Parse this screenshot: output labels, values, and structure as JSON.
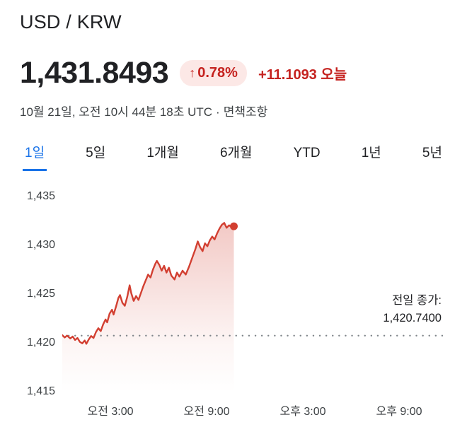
{
  "header": {
    "title": "USD / KRW",
    "price": "1,431.8493",
    "change_arrow": "↑",
    "change_percent": "0.78%",
    "change_value": "+11.1093",
    "change_period": "오늘",
    "datetime": "10월 21일, 오전 10시 44분 18초 UTC",
    "separator": "·",
    "disclaimer": "면책조항"
  },
  "tabs": [
    {
      "label": "1일",
      "active": true
    },
    {
      "label": "5일",
      "active": false
    },
    {
      "label": "1개월",
      "active": false
    },
    {
      "label": "6개월",
      "active": false
    },
    {
      "label": "YTD",
      "active": false
    },
    {
      "label": "1년",
      "active": false
    },
    {
      "label": "5년",
      "active": false
    }
  ],
  "colors": {
    "accent_blue": "#1a73e8",
    "negative_red": "#c5221f",
    "pill_background": "#fce8e6",
    "line_red": "#d23f31",
    "axis_text": "#3c4043",
    "dotted_line": "#80868b"
  },
  "chart_data": {
    "type": "line",
    "title": "USD / KRW 1일 차트",
    "x_unit": "hour",
    "x_range": [
      0,
      24
    ],
    "y_range": [
      1415,
      1435
    ],
    "yticks": [
      1435,
      1430,
      1425,
      1420,
      1415
    ],
    "ytick_labels": [
      "1,435",
      "1,430",
      "1,425",
      "1,420",
      "1,415"
    ],
    "xticks": [
      3,
      9,
      15,
      21
    ],
    "xtick_labels": [
      "오전 3:00",
      "오전 9:00",
      "오후 3:00",
      "오후 9:00"
    ],
    "grid": false,
    "legend": false,
    "line_color": "#d23f31",
    "prev_close": 1420.74,
    "prev_close_label": "전일 종가:",
    "prev_close_value_label": "1,420.7400",
    "last_price": 1431.8493,
    "points": [
      [
        0,
        1420.8
      ],
      [
        0.15,
        1420.55
      ],
      [
        0.3,
        1420.75
      ],
      [
        0.5,
        1420.45
      ],
      [
        0.65,
        1420.65
      ],
      [
        0.8,
        1420.3
      ],
      [
        0.95,
        1420.5
      ],
      [
        1.1,
        1420.1
      ],
      [
        1.25,
        1419.95
      ],
      [
        1.4,
        1420.25
      ],
      [
        1.5,
        1419.9
      ],
      [
        1.65,
        1420.35
      ],
      [
        1.8,
        1420.7
      ],
      [
        1.95,
        1420.5
      ],
      [
        2.1,
        1421.1
      ],
      [
        2.25,
        1421.5
      ],
      [
        2.4,
        1421.2
      ],
      [
        2.55,
        1421.9
      ],
      [
        2.7,
        1422.4
      ],
      [
        2.8,
        1422.1
      ],
      [
        2.95,
        1423.0
      ],
      [
        3.1,
        1423.4
      ],
      [
        3.2,
        1422.9
      ],
      [
        3.35,
        1423.7
      ],
      [
        3.5,
        1424.6
      ],
      [
        3.6,
        1424.9
      ],
      [
        3.75,
        1424.1
      ],
      [
        3.9,
        1423.8
      ],
      [
        4.05,
        1424.7
      ],
      [
        4.2,
        1425.9
      ],
      [
        4.3,
        1425.1
      ],
      [
        4.45,
        1424.3
      ],
      [
        4.6,
        1424.8
      ],
      [
        4.75,
        1424.4
      ],
      [
        4.9,
        1425.1
      ],
      [
        5.05,
        1425.8
      ],
      [
        5.2,
        1426.4
      ],
      [
        5.35,
        1427.0
      ],
      [
        5.5,
        1426.7
      ],
      [
        5.65,
        1427.5
      ],
      [
        5.8,
        1428.1
      ],
      [
        5.9,
        1428.4
      ],
      [
        6.05,
        1428.0
      ],
      [
        6.2,
        1427.4
      ],
      [
        6.35,
        1427.9
      ],
      [
        6.5,
        1427.2
      ],
      [
        6.65,
        1427.7
      ],
      [
        6.8,
        1426.9
      ],
      [
        7.0,
        1426.5
      ],
      [
        7.15,
        1427.2
      ],
      [
        7.3,
        1426.8
      ],
      [
        7.5,
        1427.4
      ],
      [
        7.7,
        1427.0
      ],
      [
        7.9,
        1427.8
      ],
      [
        8.1,
        1428.7
      ],
      [
        8.3,
        1429.6
      ],
      [
        8.45,
        1430.4
      ],
      [
        8.6,
        1429.8
      ],
      [
        8.75,
        1429.4
      ],
      [
        8.9,
        1430.2
      ],
      [
        9.05,
        1429.9
      ],
      [
        9.2,
        1430.5
      ],
      [
        9.35,
        1430.9
      ],
      [
        9.5,
        1430.6
      ],
      [
        9.65,
        1431.2
      ],
      [
        9.8,
        1431.7
      ],
      [
        9.95,
        1432.1
      ],
      [
        10.1,
        1432.3
      ],
      [
        10.25,
        1431.8
      ],
      [
        10.4,
        1432.05
      ],
      [
        10.55,
        1431.9
      ],
      [
        10.7,
        1431.95
      ]
    ]
  }
}
